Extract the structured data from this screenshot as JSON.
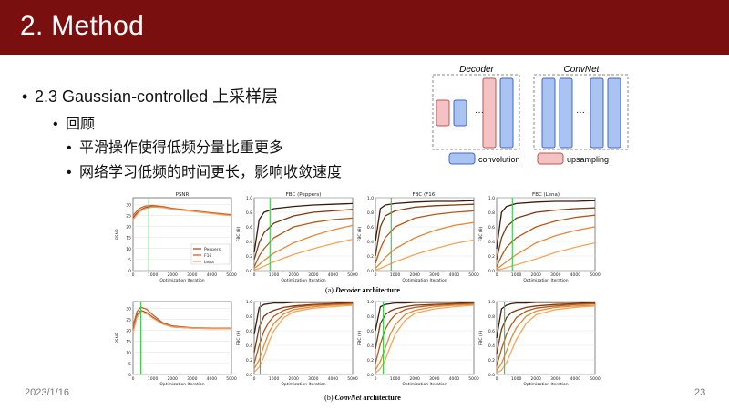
{
  "slide": {
    "title": "2. Method",
    "footer_date": "2023/1/16",
    "page_number": "23"
  },
  "bullets": {
    "l1": "2.3 Gaussian-controlled 上采样层",
    "l2": "回顾",
    "l3a": "平滑操作使得低频分量比重更多",
    "l3b": "网络学习低频的时间更长，影响收敛速度"
  },
  "diagram": {
    "decoder_label": "Decoder",
    "convnet_label": "ConvNet",
    "dots": "···",
    "legend_conv": "convolution",
    "legend_up": "upsampling",
    "conv_color": "#a9c4f0",
    "up_color": "#f4c2c2"
  },
  "figure": {
    "caption_a_prefix": "(a) ",
    "caption_a_name": "Decoder",
    "caption_a_suffix": " architecture",
    "caption_b_prefix": "(b) ",
    "caption_b_name": "ConvNet",
    "caption_b_suffix": " architecture",
    "xlabel": "Optimization Iteration",
    "psnr_ylabel": "PSNR",
    "fbc_ylabel": "FBC (θ)",
    "x_ticks": [
      "0",
      "1000",
      "2000",
      "3000",
      "4000",
      "5000"
    ],
    "psnr_ticks": [
      "0",
      "5",
      "10",
      "15",
      "20",
      "25",
      "30"
    ],
    "fbc_ticks": [
      "0.0",
      "0.2",
      "0.4",
      "0.6",
      "0.8",
      "1.0"
    ],
    "legend": [
      "Peppers",
      "F16",
      "Lena"
    ],
    "series_colors": [
      "#a0522d",
      "#c8642e",
      "#f4a460"
    ],
    "fbc_colors": [
      "#3a1a0a",
      "#7a3a12",
      "#b35a1a",
      "#e08a3a",
      "#f6a65a"
    ],
    "vline_color": "#2ecc40"
  },
  "chart_data": [
    {
      "type": "line",
      "title": "PSNR",
      "xlabel": "Optimization Iteration",
      "ylabel": "PSNR",
      "xlim": [
        0,
        5000
      ],
      "ylim": [
        0,
        33
      ],
      "x": [
        0,
        300,
        600,
        1000,
        1500,
        2000,
        3000,
        4000,
        5000
      ],
      "series": [
        {
          "name": "Peppers",
          "values": [
            24,
            27,
            28.5,
            29,
            28.7,
            28,
            27,
            26,
            25
          ]
        },
        {
          "name": "F16",
          "values": [
            25,
            28,
            29.2,
            29.5,
            29,
            28.2,
            27.2,
            26.2,
            25.3
          ]
        },
        {
          "name": "Lena",
          "values": [
            23,
            26.5,
            28,
            28.8,
            28.5,
            27.8,
            26.8,
            25.8,
            24.8
          ]
        }
      ],
      "vline": 800
    },
    {
      "type": "line",
      "title": "FBC (Peppers)",
      "xlabel": "Optimization Iteration",
      "ylabel": "FBC (θ)",
      "xlim": [
        0,
        5000
      ],
      "ylim": [
        0,
        1
      ],
      "x": [
        0,
        250,
        500,
        1000,
        2000,
        3000,
        4000,
        5000
      ],
      "series": [
        {
          "values": [
            0.25,
            0.7,
            0.8,
            0.85,
            0.88,
            0.9,
            0.91,
            0.92
          ]
        },
        {
          "values": [
            0.15,
            0.38,
            0.52,
            0.65,
            0.75,
            0.8,
            0.82,
            0.84
          ]
        },
        {
          "values": [
            0.05,
            0.2,
            0.3,
            0.45,
            0.6,
            0.66,
            0.7,
            0.72
          ]
        },
        {
          "values": [
            0.03,
            0.08,
            0.14,
            0.24,
            0.38,
            0.48,
            0.56,
            0.62
          ]
        },
        {
          "values": [
            0.01,
            0.03,
            0.06,
            0.12,
            0.22,
            0.3,
            0.37,
            0.43
          ]
        }
      ],
      "vline": 800
    },
    {
      "type": "line",
      "title": "FBC (F16)",
      "xlabel": "Optimization Iteration",
      "ylabel": "FBC (θ)",
      "xlim": [
        0,
        5000
      ],
      "ylim": [
        0,
        1
      ],
      "x": [
        0,
        250,
        500,
        1000,
        2000,
        3000,
        4000,
        5000
      ],
      "series": [
        {
          "values": [
            0.4,
            0.85,
            0.9,
            0.92,
            0.94,
            0.95,
            0.95,
            0.96
          ]
        },
        {
          "values": [
            0.2,
            0.6,
            0.75,
            0.82,
            0.87,
            0.89,
            0.9,
            0.91
          ]
        },
        {
          "values": [
            0.1,
            0.3,
            0.45,
            0.6,
            0.72,
            0.77,
            0.8,
            0.82
          ]
        },
        {
          "values": [
            0.03,
            0.1,
            0.18,
            0.3,
            0.45,
            0.55,
            0.62,
            0.66
          ]
        },
        {
          "values": [
            0.01,
            0.03,
            0.06,
            0.12,
            0.22,
            0.3,
            0.37,
            0.42
          ]
        }
      ],
      "vline": 800
    },
    {
      "type": "line",
      "title": "FBC (Lena)",
      "xlabel": "Optimization Iteration",
      "ylabel": "FBC (θ)",
      "xlim": [
        0,
        5000
      ],
      "ylim": [
        0,
        1
      ],
      "x": [
        0,
        250,
        500,
        1000,
        2000,
        3000,
        4000,
        5000
      ],
      "series": [
        {
          "values": [
            0.3,
            0.8,
            0.88,
            0.92,
            0.94,
            0.95,
            0.95,
            0.96
          ]
        },
        {
          "values": [
            0.15,
            0.45,
            0.6,
            0.72,
            0.8,
            0.83,
            0.85,
            0.86
          ]
        },
        {
          "values": [
            0.05,
            0.2,
            0.32,
            0.45,
            0.6,
            0.68,
            0.73,
            0.76
          ]
        },
        {
          "values": [
            0.02,
            0.07,
            0.12,
            0.22,
            0.38,
            0.48,
            0.55,
            0.6
          ]
        },
        {
          "values": [
            0.01,
            0.02,
            0.04,
            0.08,
            0.16,
            0.25,
            0.32,
            0.38
          ]
        }
      ],
      "vline": 800
    },
    {
      "type": "line",
      "title": "",
      "xlabel": "Optimization Iteration",
      "ylabel": "PSNR",
      "xlim": [
        0,
        5000
      ],
      "ylim": [
        0,
        33
      ],
      "x": [
        0,
        200,
        400,
        700,
        1000,
        1500,
        2000,
        3000,
        4000,
        5000
      ],
      "series": [
        {
          "name": "Peppers",
          "values": [
            20,
            27,
            29,
            28,
            26,
            23,
            21.5,
            21,
            20.8,
            20.8
          ]
        },
        {
          "name": "F16",
          "values": [
            22,
            28.5,
            30.5,
            29.5,
            27,
            23.5,
            22,
            21.2,
            21,
            21
          ]
        },
        {
          "name": "Lena",
          "values": [
            19,
            26,
            28,
            27.5,
            25.5,
            22.8,
            21.5,
            21,
            20.7,
            20.7
          ]
        }
      ],
      "vline": 400
    },
    {
      "type": "line",
      "title": "",
      "xlabel": "Optimization Iteration",
      "ylabel": "FBC (θ)",
      "xlim": [
        0,
        5000
      ],
      "ylim": [
        0,
        1
      ],
      "x": [
        0,
        250,
        500,
        750,
        1000,
        1500,
        2000,
        3000,
        4000,
        5000
      ],
      "series": [
        {
          "values": [
            0.55,
            0.92,
            0.96,
            0.97,
            0.98,
            0.98,
            0.99,
            0.99,
            0.99,
            0.99
          ]
        },
        {
          "values": [
            0.3,
            0.65,
            0.8,
            0.85,
            0.88,
            0.92,
            0.94,
            0.96,
            0.97,
            0.98
          ]
        },
        {
          "values": [
            0.15,
            0.4,
            0.6,
            0.72,
            0.8,
            0.88,
            0.92,
            0.95,
            0.96,
            0.97
          ]
        },
        {
          "values": [
            0.08,
            0.2,
            0.4,
            0.58,
            0.7,
            0.83,
            0.89,
            0.93,
            0.95,
            0.96
          ]
        },
        {
          "values": [
            0.03,
            0.1,
            0.25,
            0.45,
            0.6,
            0.78,
            0.86,
            0.91,
            0.93,
            0.95
          ]
        }
      ],
      "vline": 300
    },
    {
      "type": "line",
      "title": "",
      "xlabel": "Optimization Iteration",
      "ylabel": "FBC (θ)",
      "xlim": [
        0,
        5000
      ],
      "ylim": [
        0,
        1
      ],
      "x": [
        0,
        250,
        500,
        750,
        1000,
        1500,
        2000,
        3000,
        4000,
        5000
      ],
      "series": [
        {
          "values": [
            0.6,
            0.93,
            0.96,
            0.97,
            0.98,
            0.98,
            0.99,
            0.99,
            0.99,
            0.99
          ]
        },
        {
          "values": [
            0.35,
            0.7,
            0.82,
            0.87,
            0.9,
            0.93,
            0.95,
            0.96,
            0.97,
            0.98
          ]
        },
        {
          "values": [
            0.15,
            0.42,
            0.62,
            0.74,
            0.82,
            0.89,
            0.92,
            0.95,
            0.96,
            0.97
          ]
        },
        {
          "values": [
            0.06,
            0.18,
            0.36,
            0.55,
            0.68,
            0.82,
            0.88,
            0.93,
            0.95,
            0.96
          ]
        },
        {
          "values": [
            0.02,
            0.08,
            0.2,
            0.38,
            0.55,
            0.74,
            0.84,
            0.9,
            0.93,
            0.95
          ]
        }
      ],
      "vline": 400
    },
    {
      "type": "line",
      "title": "",
      "xlabel": "Optimization Iteration",
      "ylabel": "FBC (θ)",
      "xlim": [
        0,
        5000
      ],
      "ylim": [
        0,
        1
      ],
      "x": [
        0,
        250,
        500,
        750,
        1000,
        1500,
        2000,
        3000,
        4000,
        5000
      ],
      "series": [
        {
          "values": [
            0.5,
            0.9,
            0.95,
            0.97,
            0.98,
            0.98,
            0.99,
            0.99,
            0.99,
            0.99
          ]
        },
        {
          "values": [
            0.28,
            0.62,
            0.78,
            0.85,
            0.88,
            0.92,
            0.94,
            0.96,
            0.97,
            0.98
          ]
        },
        {
          "values": [
            0.12,
            0.35,
            0.55,
            0.68,
            0.78,
            0.87,
            0.91,
            0.94,
            0.96,
            0.97
          ]
        },
        {
          "values": [
            0.05,
            0.15,
            0.32,
            0.5,
            0.64,
            0.8,
            0.87,
            0.92,
            0.94,
            0.95
          ]
        },
        {
          "values": [
            0.02,
            0.06,
            0.16,
            0.32,
            0.48,
            0.7,
            0.82,
            0.89,
            0.92,
            0.94
          ]
        }
      ],
      "vline": 400
    }
  ]
}
